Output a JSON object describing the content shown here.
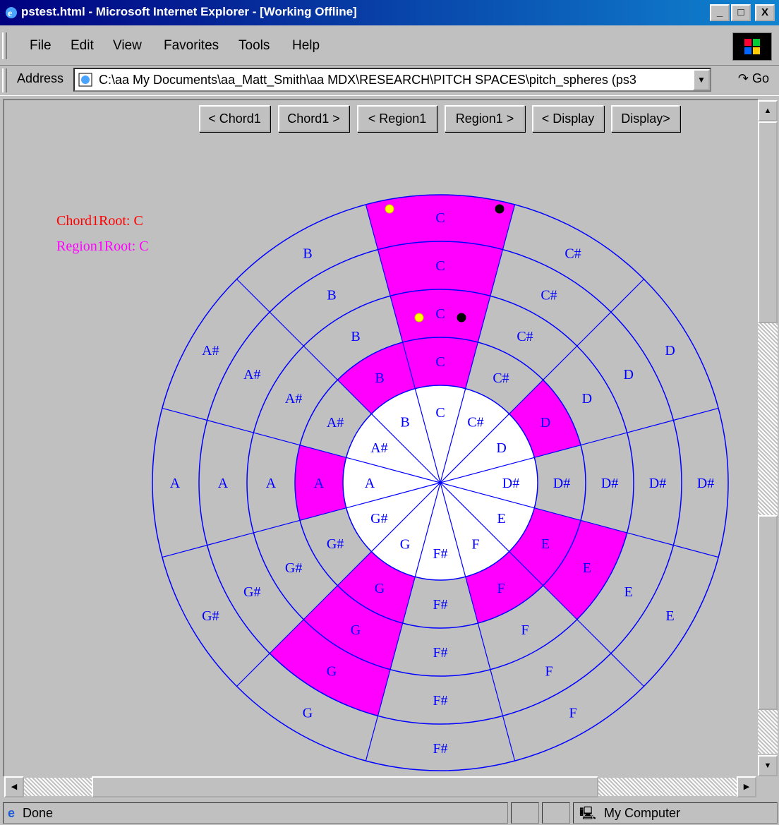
{
  "window": {
    "title": "pstest.html - Microsoft Internet Explorer - [Working Offline]",
    "buttons": [
      "_",
      "□",
      "X"
    ]
  },
  "menu": [
    "File",
    "Edit",
    "View",
    "Favorites",
    "Tools",
    "Help"
  ],
  "address": {
    "label": "Address",
    "value": "C:\\aa My Documents\\aa_Matt_Smith\\aa MDX\\RESEARCH\\PITCH SPACES\\pitch_spheres (ps3",
    "go": "Go"
  },
  "nav_buttons": [
    "< Chord1",
    "Chord1 >",
    "< Region1",
    "Region1 >",
    "< Display",
    "Display>"
  ],
  "labels": {
    "chord_root": "Chord1Root: C",
    "region_root": "Region1Root: C"
  },
  "wheel": {
    "notes": [
      "C",
      "C#",
      "D",
      "D#",
      "E",
      "F",
      "F#",
      "G",
      "G#",
      "A",
      "A#",
      "B"
    ],
    "highlight_color": "#ff00ff",
    "line_color": "#0000ff",
    "highlights": {
      "ring1": [
        "B",
        "C",
        "D",
        "E",
        "F",
        "G",
        "A"
      ],
      "ring2": [
        "C",
        "E",
        "G"
      ],
      "ring3": [
        "C",
        "G"
      ],
      "ring4": [
        "C"
      ]
    },
    "markers": [
      {
        "ring": 1,
        "color": "#ffff00"
      },
      {
        "ring": 1,
        "color": "#000000"
      },
      {
        "ring": 4,
        "color": "#ffff00"
      },
      {
        "ring": 4,
        "color": "#000000"
      }
    ]
  },
  "status": {
    "text": "Done",
    "zone": "My Computer"
  },
  "colors": {
    "chord_label": "#ff0000",
    "region_label": "#ff00ff"
  }
}
